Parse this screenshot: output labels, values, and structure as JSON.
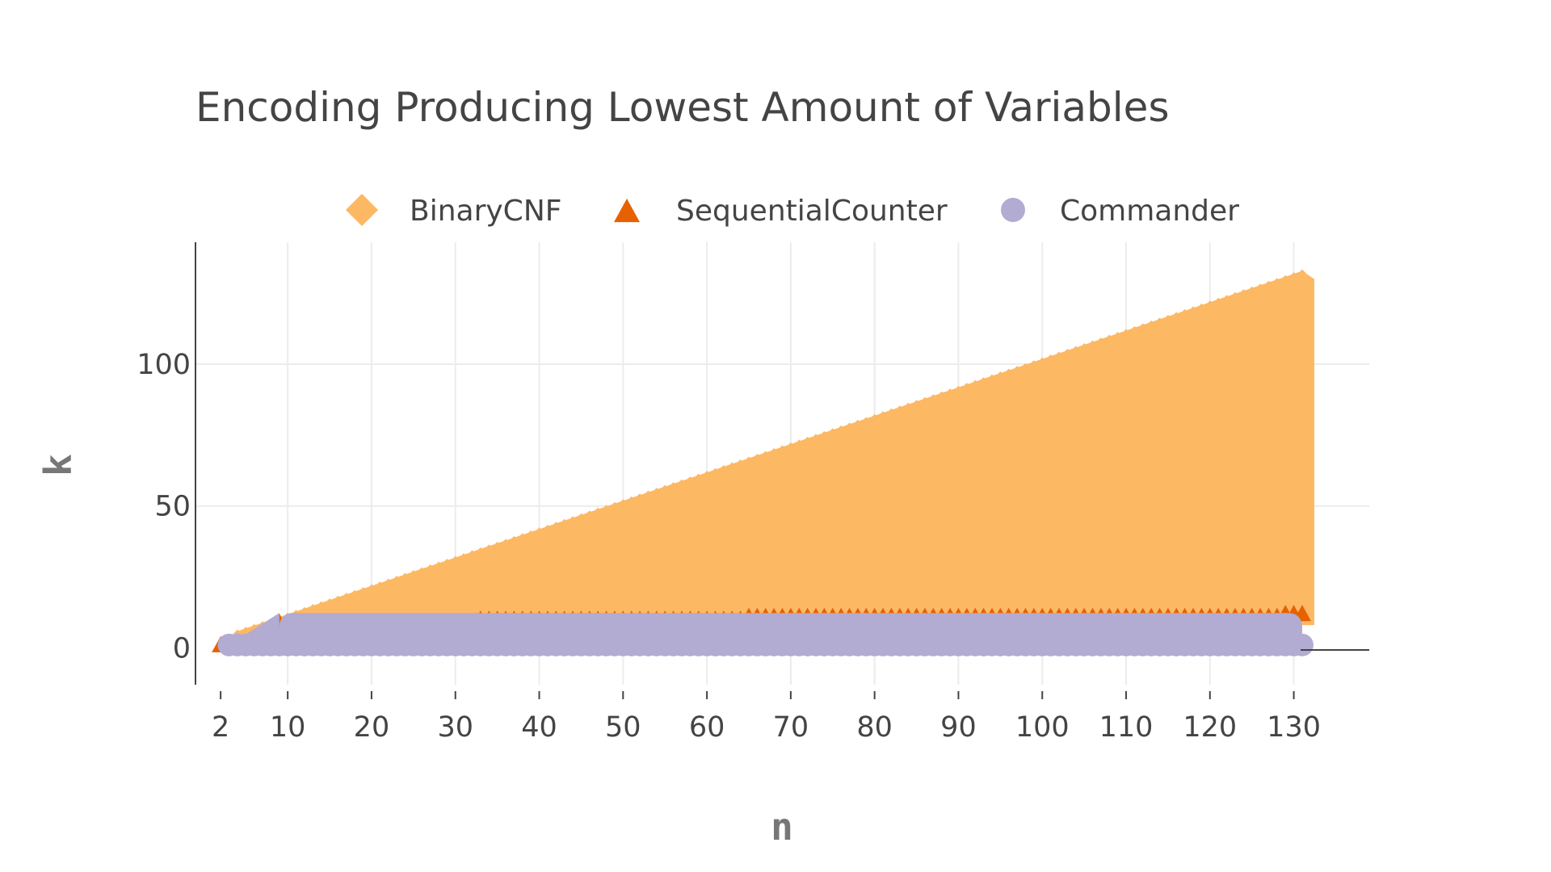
{
  "chart_data": {
    "type": "scatter",
    "title": "Encoding Producing Lowest Amount of Variables",
    "xlabel": "n",
    "ylabel": "k",
    "xlim": [
      -1,
      139
    ],
    "ylim": [
      -13,
      143
    ],
    "x_ticks": [
      2,
      10,
      20,
      30,
      40,
      50,
      60,
      70,
      80,
      90,
      100,
      110,
      120,
      130
    ],
    "y_ticks": [
      0,
      50,
      100
    ],
    "grid": true,
    "legend_position": "top-center",
    "legend_orientation": "horizontal",
    "n_range": [
      2,
      131
    ],
    "series": [
      {
        "name": "BinaryCNF",
        "marker": "diamond",
        "color": "#fdb863",
        "description_rule": "for each n, markers fill k from the Commander/SequentialCounter boundary up to about n-1",
        "points": [
          {
            "n": 4,
            "k_min": 3,
            "k_max": 3
          },
          {
            "n": 10,
            "k_min": 10,
            "k_max": 9
          },
          {
            "n": 20,
            "k_min": 10,
            "k_max": 19
          },
          {
            "n": 30,
            "k_min": 10,
            "k_max": 29
          },
          {
            "n": 40,
            "k_min": 11,
            "k_max": 39
          },
          {
            "n": 50,
            "k_min": 11,
            "k_max": 49
          },
          {
            "n": 60,
            "k_min": 11,
            "k_max": 59
          },
          {
            "n": 70,
            "k_min": 12,
            "k_max": 69
          },
          {
            "n": 80,
            "k_min": 12,
            "k_max": 79
          },
          {
            "n": 90,
            "k_min": 12,
            "k_max": 89
          },
          {
            "n": 100,
            "k_min": 12,
            "k_max": 99
          },
          {
            "n": 110,
            "k_min": 12,
            "k_max": 109
          },
          {
            "n": 120,
            "k_min": 12,
            "k_max": 119
          },
          {
            "n": 130,
            "k_min": 12,
            "k_max": 129
          }
        ]
      },
      {
        "name": "SequentialCounter",
        "marker": "triangle-up",
        "color": "#e66101",
        "points": [
          {
            "n": 2,
            "k_min": 1,
            "k_max": 1
          },
          {
            "n": 3,
            "k_min": 1,
            "k_max": 2
          },
          {
            "n": 9,
            "k_min": 8,
            "k_max": 8
          },
          {
            "n": 17,
            "k_min": 9,
            "k_max": 9
          },
          {
            "n": 33,
            "k_min": 10,
            "k_max": 10
          },
          {
            "n": 65,
            "k_min": 11,
            "k_max": 11
          },
          {
            "n": 129,
            "k_min": 12,
            "k_max": 12
          },
          {
            "n": 130,
            "k_min": 12,
            "k_max": 12
          },
          {
            "n": 131,
            "k_min": 12,
            "k_max": 12
          }
        ]
      },
      {
        "name": "Commander",
        "marker": "circle",
        "color": "#b2abd2",
        "points": [
          {
            "n": 3,
            "k_min": 1,
            "k_max": 1
          },
          {
            "n": 9,
            "k_min": 1,
            "k_max": 7
          },
          {
            "n": 17,
            "k_min": 1,
            "k_max": 8
          },
          {
            "n": 33,
            "k_min": 1,
            "k_max": 9
          },
          {
            "n": 65,
            "k_min": 1,
            "k_max": 10
          },
          {
            "n": 130,
            "k_min": 1,
            "k_max": 10
          }
        ]
      }
    ]
  }
}
